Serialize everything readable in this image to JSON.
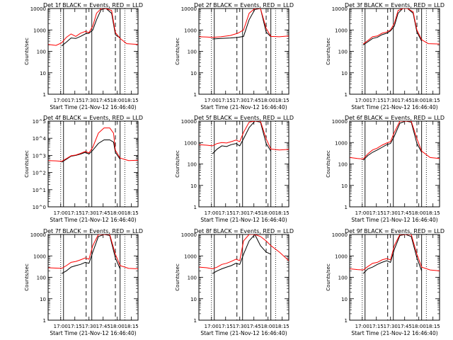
{
  "figure": {
    "x_ticks": [
      "17:00",
      "17:15",
      "17:30",
      "17:45",
      "18:00",
      "18:15"
    ],
    "xlabel": "Start Time (21-Nov-12 16:46:40)",
    "ylabel": "Counts/sec",
    "colors": {
      "events": "#000000",
      "lld": "#ff0000"
    }
  },
  "chart_data": [
    {
      "type": "line",
      "title": "Det 1f BLACK = Events, RED = LLD",
      "y_ticks": [
        "1",
        "10",
        "100",
        "1000",
        "10000"
      ],
      "ylim": [
        1,
        10000
      ],
      "y_scale": "log",
      "x_range": [
        "16:46:40",
        "18:22:00"
      ],
      "vertical_markers": {
        "solid": [
          "17:03",
          "17:33",
          "18:03"
        ],
        "dashed": [
          "17:27",
          "17:58"
        ],
        "dotted": [
          "17:00",
          "18:08"
        ]
      },
      "series": [
        {
          "name": "Events",
          "color": "#000000",
          "x": [
            "17:01",
            "17:06",
            "17:11",
            "17:16",
            "17:21",
            "17:26",
            "17:30",
            "17:34",
            "17:38",
            "17:43",
            "17:48",
            "17:54",
            "17:58",
            "18:01",
            "18:03"
          ],
          "values": [
            180,
            270,
            420,
            400,
            500,
            650,
            700,
            1000,
            3000,
            9000,
            10000,
            6000,
            600,
            480,
            450
          ]
        },
        {
          "name": "LLD",
          "color": "#ff0000",
          "x": [
            "16:47",
            "16:55",
            "17:01",
            "17:06",
            "17:11",
            "17:16",
            "17:21",
            "17:26",
            "17:30",
            "17:34",
            "17:38",
            "17:43",
            "17:48",
            "17:54",
            "17:58",
            "18:03",
            "18:10",
            "18:22"
          ],
          "values": [
            210,
            190,
            250,
            450,
            650,
            500,
            700,
            850,
            750,
            1500,
            6000,
            10000,
            10000,
            8000,
            750,
            400,
            230,
            210
          ]
        }
      ]
    },
    {
      "type": "line",
      "title": "Det 2f BLACK = Events, RED = LLD",
      "y_ticks": [
        "1",
        "10",
        "100",
        "1000",
        "10000"
      ],
      "ylim": [
        1,
        10000
      ],
      "y_scale": "log",
      "x_range": [
        "16:46:40",
        "18:22:00"
      ],
      "vertical_markers": {
        "solid": [
          "17:03",
          "17:33",
          "18:03"
        ],
        "dashed": [
          "17:27",
          "17:58"
        ],
        "dotted": [
          "17:00",
          "18:08"
        ]
      },
      "series": [
        {
          "name": "Events",
          "color": "#000000",
          "x": [
            "17:01",
            "17:10",
            "17:20",
            "17:28",
            "17:34",
            "17:40",
            "17:46",
            "17:52",
            "17:58",
            "18:03"
          ],
          "values": [
            380,
            400,
            420,
            450,
            500,
            3000,
            9000,
            10000,
            800,
            480
          ]
        },
        {
          "name": "LLD",
          "color": "#ff0000",
          "x": [
            "16:47",
            "16:55",
            "17:01",
            "17:10",
            "17:20",
            "17:28",
            "17:34",
            "17:40",
            "17:46",
            "17:52",
            "17:58",
            "18:03",
            "18:12",
            "18:22"
          ],
          "values": [
            480,
            470,
            450,
            480,
            550,
            700,
            1000,
            6000,
            10000,
            10000,
            1200,
            500,
            480,
            520
          ]
        }
      ]
    },
    {
      "type": "line",
      "title": "Det 3f BLACK = Events, RED = LLD",
      "y_ticks": [
        "1",
        "10",
        "100",
        "1000",
        "10000"
      ],
      "ylim": [
        1,
        10000
      ],
      "y_scale": "log",
      "x_range": [
        "16:46:40",
        "18:22:00"
      ],
      "vertical_markers": {
        "solid": [
          "17:03",
          "17:33",
          "18:03"
        ],
        "dashed": [
          "17:27",
          "17:58"
        ],
        "dotted": [
          "17:00",
          "18:08"
        ]
      },
      "series": [
        {
          "name": "Events",
          "color": "#000000",
          "x": [
            "17:01",
            "17:06",
            "17:11",
            "17:16",
            "17:21",
            "17:26",
            "17:30",
            "17:34",
            "17:38",
            "17:43",
            "17:48",
            "17:54",
            "17:58",
            "18:03"
          ],
          "values": [
            200,
            280,
            400,
            450,
            600,
            700,
            900,
            1500,
            6000,
            10000,
            10000,
            6000,
            800,
            300
          ]
        },
        {
          "name": "LLD",
          "color": "#ff0000",
          "x": [
            "17:01",
            "17:06",
            "17:11",
            "17:16",
            "17:21",
            "17:26",
            "17:30",
            "17:34",
            "17:38",
            "17:43",
            "17:48",
            "17:54",
            "17:58",
            "18:03",
            "18:10",
            "18:22"
          ],
          "values": [
            220,
            320,
            480,
            520,
            700,
            800,
            1000,
            2000,
            8000,
            10000,
            10000,
            7000,
            1000,
            350,
            230,
            220
          ]
        }
      ]
    },
    {
      "type": "line",
      "title": "Det 4f BLACK = Events, RED = LLD",
      "y_ticks": [
        "10^0",
        "10^1",
        "10^2",
        "10^3",
        "10^4",
        "10^5"
      ],
      "ylim": [
        1,
        100000
      ],
      "y_scale": "log",
      "x_range": [
        "16:46:40",
        "18:22:00"
      ],
      "vertical_markers": {
        "solid": [
          "17:03",
          "17:33",
          "18:03"
        ],
        "dashed": [
          "17:27",
          "17:58"
        ],
        "dotted": [
          "17:00",
          "18:08"
        ]
      },
      "series": [
        {
          "name": "Events",
          "color": "#000000",
          "x": [
            "17:01",
            "17:06",
            "17:11",
            "17:16",
            "17:21",
            "17:26",
            "17:30",
            "17:34",
            "17:40",
            "17:46",
            "17:52",
            "17:56",
            "17:58",
            "18:03"
          ],
          "values": [
            400,
            600,
            900,
            1000,
            1200,
            1500,
            1200,
            2000,
            5000,
            8000,
            8000,
            6000,
            1500,
            600
          ]
        },
        {
          "name": "LLD",
          "color": "#ff0000",
          "x": [
            "16:47",
            "16:55",
            "17:01",
            "17:06",
            "17:11",
            "17:16",
            "17:21",
            "17:26",
            "17:30",
            "17:34",
            "17:40",
            "17:46",
            "17:52",
            "17:56",
            "17:58",
            "18:03",
            "18:12",
            "18:22"
          ],
          "values": [
            500,
            480,
            450,
            650,
            950,
            1050,
            1300,
            1700,
            1400,
            3000,
            20000,
            40000,
            40000,
            20000,
            2000,
            700,
            500,
            520
          ]
        }
      ]
    },
    {
      "type": "line",
      "title": "Det 5f BLACK = Events, RED = LLD",
      "y_ticks": [
        "1",
        "10",
        "100",
        "1000",
        "10000"
      ],
      "ylim": [
        1,
        10000
      ],
      "y_scale": "log",
      "x_range": [
        "16:46:40",
        "18:22:00"
      ],
      "vertical_markers": {
        "solid": [
          "17:03",
          "17:33",
          "18:03"
        ],
        "dashed": [
          "17:27",
          "17:58"
        ],
        "dotted": [
          "17:00",
          "18:08"
        ]
      },
      "series": [
        {
          "name": "Events",
          "color": "#000000",
          "x": [
            "17:01",
            "17:06",
            "17:11",
            "17:16",
            "17:21",
            "17:26",
            "17:30",
            "17:34",
            "17:40",
            "17:46",
            "17:52",
            "17:58",
            "18:03"
          ],
          "values": [
            300,
            500,
            700,
            650,
            800,
            900,
            700,
            1500,
            5000,
            10000,
            9000,
            900,
            400
          ]
        },
        {
          "name": "LLD",
          "color": "#ff0000",
          "x": [
            "16:47",
            "16:55",
            "17:01",
            "17:06",
            "17:11",
            "17:16",
            "17:21",
            "17:26",
            "17:30",
            "17:34",
            "17:40",
            "17:46",
            "17:52",
            "17:58",
            "18:03",
            "18:12",
            "18:22"
          ],
          "values": [
            800,
            750,
            700,
            900,
            1000,
            950,
            1100,
            1300,
            1100,
            3000,
            9000,
            10000,
            10000,
            1500,
            500,
            450,
            480
          ]
        }
      ]
    },
    {
      "type": "line",
      "title": "Det 6f BLACK = Events, RED = LLD",
      "y_ticks": [
        "1",
        "10",
        "100",
        "1000",
        "10000"
      ],
      "ylim": [
        1,
        10000
      ],
      "y_scale": "log",
      "x_range": [
        "16:46:40",
        "18:22:00"
      ],
      "vertical_markers": {
        "solid": [
          "17:03",
          "17:33",
          "18:03"
        ],
        "dashed": [
          "17:27",
          "17:58"
        ],
        "dotted": [
          "17:00",
          "18:08"
        ]
      },
      "series": [
        {
          "name": "Events",
          "color": "#000000",
          "x": [
            "17:01",
            "17:06",
            "17:11",
            "17:16",
            "17:21",
            "17:26",
            "17:30",
            "17:34",
            "17:40",
            "17:46",
            "17:52",
            "17:58",
            "18:03"
          ],
          "values": [
            150,
            250,
            350,
            450,
            600,
            800,
            900,
            2000,
            8000,
            10000,
            9000,
            900,
            350
          ]
        },
        {
          "name": "LLD",
          "color": "#ff0000",
          "x": [
            "16:47",
            "16:55",
            "17:01",
            "17:06",
            "17:11",
            "17:16",
            "17:21",
            "17:26",
            "17:30",
            "17:34",
            "17:40",
            "17:46",
            "17:52",
            "17:58",
            "18:03",
            "18:12",
            "18:22"
          ],
          "values": [
            200,
            180,
            170,
            300,
            450,
            550,
            750,
            950,
            1100,
            3000,
            10000,
            10000,
            10000,
            1500,
            400,
            200,
            180
          ]
        }
      ]
    },
    {
      "type": "line",
      "title": "Det 7f BLACK = Events, RED = LLD",
      "y_ticks": [
        "1",
        "10",
        "100",
        "1000",
        "10000"
      ],
      "ylim": [
        1,
        10000
      ],
      "y_scale": "log",
      "x_range": [
        "16:46:40",
        "18:22:00"
      ],
      "vertical_markers": {
        "solid": [
          "17:03",
          "17:33",
          "18:03"
        ],
        "dashed": [
          "17:27",
          "17:58"
        ],
        "dotted": [
          "17:00",
          "18:08"
        ]
      },
      "series": [
        {
          "name": "Events",
          "color": "#000000",
          "x": [
            "17:01",
            "17:06",
            "17:11",
            "17:16",
            "17:21",
            "17:26",
            "17:30",
            "17:34",
            "17:40",
            "17:46",
            "17:52",
            "17:58",
            "18:03"
          ],
          "values": [
            150,
            200,
            300,
            350,
            400,
            500,
            450,
            1500,
            8000,
            10000,
            9000,
            800,
            250
          ]
        },
        {
          "name": "LLD",
          "color": "#ff0000",
          "x": [
            "16:47",
            "16:55",
            "17:01",
            "17:06",
            "17:11",
            "17:16",
            "17:21",
            "17:26",
            "17:30",
            "17:34",
            "17:40",
            "17:46",
            "17:52",
            "17:58",
            "18:03",
            "18:12",
            "18:22"
          ],
          "values": [
            280,
            270,
            260,
            350,
            500,
            550,
            650,
            800,
            700,
            3000,
            10000,
            10000,
            10000,
            1200,
            350,
            260,
            250
          ]
        }
      ]
    },
    {
      "type": "line",
      "title": "Det 8f BLACK = Events, RED = LLD",
      "y_ticks": [
        "1",
        "10",
        "100",
        "1000",
        "10000"
      ],
      "ylim": [
        1,
        10000
      ],
      "y_scale": "log",
      "x_range": [
        "16:46:40",
        "18:22:00"
      ],
      "vertical_markers": {
        "solid": [
          "17:03",
          "17:33",
          "18:03"
        ],
        "dashed": [
          "17:27",
          "17:58"
        ],
        "dotted": [
          "17:00",
          "18:08"
        ]
      },
      "series": [
        {
          "name": "Events",
          "color": "#000000",
          "x": [
            "17:01",
            "17:06",
            "17:11",
            "17:16",
            "17:21",
            "17:26",
            "17:30",
            "17:34",
            "17:40",
            "17:46",
            "17:52",
            "17:58",
            "18:03"
          ],
          "values": [
            150,
            200,
            250,
            300,
            350,
            450,
            400,
            1200,
            5000,
            10000,
            3000,
            1500,
            1200
          ]
        },
        {
          "name": "LLD",
          "color": "#ff0000",
          "x": [
            "16:47",
            "16:55",
            "17:01",
            "17:06",
            "17:11",
            "17:16",
            "17:21",
            "17:26",
            "17:30",
            "17:34",
            "17:40",
            "17:46",
            "17:52",
            "17:58",
            "18:03",
            "18:12",
            "18:22"
          ],
          "values": [
            300,
            280,
            250,
            300,
            400,
            450,
            550,
            700,
            600,
            5000,
            10000,
            10000,
            8000,
            5000,
            3000,
            1500,
            600
          ]
        }
      ]
    },
    {
      "type": "line",
      "title": "Det 9f BLACK = Events, RED = LLD",
      "y_ticks": [
        "1",
        "10",
        "100",
        "1000",
        "10000"
      ],
      "ylim": [
        1,
        10000
      ],
      "y_scale": "log",
      "x_range": [
        "16:46:40",
        "18:22:00"
      ],
      "vertical_markers": {
        "solid": [
          "17:03",
          "17:33",
          "18:03"
        ],
        "dashed": [
          "17:27",
          "17:58"
        ],
        "dotted": [
          "17:00",
          "18:08"
        ]
      },
      "series": [
        {
          "name": "Events",
          "color": "#000000",
          "x": [
            "17:01",
            "17:06",
            "17:11",
            "17:16",
            "17:21",
            "17:26",
            "17:30",
            "17:34",
            "17:40",
            "17:46",
            "17:52",
            "17:58",
            "18:03"
          ],
          "values": [
            150,
            250,
            300,
            400,
            500,
            600,
            500,
            2000,
            9000,
            10000,
            8000,
            800,
            200
          ]
        },
        {
          "name": "LLD",
          "color": "#ff0000",
          "x": [
            "16:47",
            "16:55",
            "17:01",
            "17:06",
            "17:11",
            "17:16",
            "17:21",
            "17:26",
            "17:30",
            "17:34",
            "17:40",
            "17:46",
            "17:52",
            "17:58",
            "18:03",
            "18:12",
            "18:22"
          ],
          "values": [
            250,
            230,
            220,
            320,
            450,
            500,
            650,
            750,
            650,
            3000,
            10000,
            10000,
            10000,
            1200,
            300,
            220,
            200
          ]
        }
      ]
    }
  ]
}
